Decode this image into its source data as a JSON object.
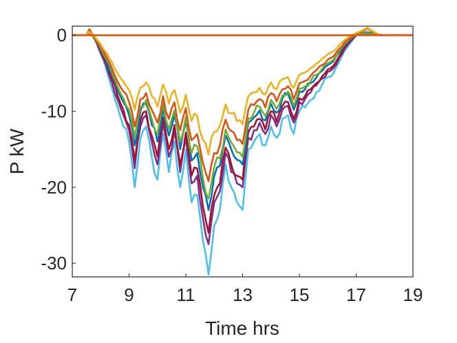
{
  "chart_data": {
    "type": "line",
    "title": "",
    "xlabel": "Time hrs",
    "ylabel": "P kW",
    "xlim": [
      7,
      19
    ],
    "ylim": [
      -31.8,
      1.2
    ],
    "xticks": [
      7,
      9,
      11,
      13,
      15,
      17,
      19
    ],
    "yticks": [
      0,
      -10,
      -20,
      -30
    ],
    "grid": false,
    "legend": "none",
    "x_sample_hours": [
      7.0,
      7.5,
      7.6,
      7.7,
      7.8,
      7.9,
      8.0,
      8.2,
      8.4,
      8.6,
      8.8,
      9.0,
      9.2,
      9.4,
      9.6,
      9.8,
      10.0,
      10.2,
      10.4,
      10.6,
      10.8,
      11.0,
      11.2,
      11.4,
      11.6,
      11.8,
      12.0,
      12.2,
      12.4,
      12.6,
      12.8,
      13.0,
      13.2,
      13.4,
      13.6,
      13.8,
      14.0,
      14.2,
      14.4,
      14.6,
      14.8,
      15.0,
      15.2,
      15.4,
      15.6,
      15.8,
      16.0,
      16.2,
      16.4,
      16.6,
      16.8,
      17.0,
      17.2,
      17.4,
      17.6,
      17.8,
      18.0,
      19.0
    ],
    "series": [
      {
        "color": "#4DBEEE",
        "values": [
          0,
          0,
          0.4,
          0,
          -0.6,
          -1.5,
          -2.5,
          -4.5,
          -7.0,
          -9.5,
          -12.0,
          -14.0,
          -20.0,
          -13.5,
          -12.0,
          -16.0,
          -19.0,
          -13.0,
          -18.0,
          -14.0,
          -20.0,
          -15.0,
          -22.0,
          -21.0,
          -27.0,
          -31.5,
          -25.0,
          -23.0,
          -17.0,
          -20.0,
          -22.0,
          -23.0,
          -15.0,
          -14.0,
          -13.0,
          -14.5,
          -12.0,
          -13.5,
          -11.0,
          -10.5,
          -13.0,
          -10.0,
          -9.5,
          -8.5,
          -7.5,
          -6.5,
          -5.5,
          -5.0,
          -3.5,
          -2.0,
          -1.0,
          0,
          0.1,
          0.2,
          0.1,
          0,
          0,
          0
        ]
      },
      {
        "color": "#7E2F8E",
        "values": [
          0,
          0,
          0.3,
          0,
          -0.5,
          -1.3,
          -2.2,
          -4.0,
          -6.2,
          -8.5,
          -10.5,
          -12.5,
          -17.5,
          -12.0,
          -10.5,
          -14.0,
          -17.0,
          -11.5,
          -16.0,
          -12.5,
          -18.0,
          -13.5,
          -19.5,
          -18.5,
          -24.0,
          -27.5,
          -22.0,
          -20.5,
          -15.5,
          -18.0,
          -19.5,
          -20.0,
          -13.5,
          -12.5,
          -11.5,
          -13.0,
          -10.5,
          -12.0,
          -9.8,
          -9.3,
          -11.5,
          -8.8,
          -8.4,
          -7.5,
          -6.6,
          -5.7,
          -4.8,
          -4.3,
          -3.0,
          -1.7,
          -0.8,
          0,
          0.1,
          0.2,
          0.1,
          0,
          0,
          0
        ]
      },
      {
        "color": "#A2142F",
        "values": [
          0,
          0,
          0.3,
          0,
          -0.5,
          -1.2,
          -2.0,
          -3.7,
          -5.8,
          -8.0,
          -9.8,
          -11.8,
          -16.5,
          -11.2,
          -10.0,
          -13.2,
          -16.0,
          -10.8,
          -15.0,
          -11.8,
          -17.0,
          -12.8,
          -18.5,
          -17.5,
          -22.5,
          -26.0,
          -21.0,
          -19.5,
          -14.8,
          -17.0,
          -18.5,
          -19.0,
          -12.8,
          -12.0,
          -11.0,
          -12.4,
          -10.0,
          -11.4,
          -9.3,
          -8.8,
          -11.0,
          -8.3,
          -8.0,
          -7.1,
          -6.3,
          -5.4,
          -4.5,
          -4.0,
          -2.8,
          -1.6,
          -0.7,
          0,
          0.1,
          0.2,
          0.1,
          0,
          0,
          0
        ]
      },
      {
        "color": "#0072BD",
        "values": [
          0,
          0,
          0.6,
          0,
          -0.4,
          -1.0,
          -1.8,
          -3.3,
          -5.2,
          -7.2,
          -8.8,
          -10.5,
          -14.5,
          -10.0,
          -9.0,
          -11.8,
          -14.0,
          -9.6,
          -13.2,
          -10.5,
          -15.0,
          -11.4,
          -16.5,
          -15.5,
          -20.0,
          -23.0,
          -18.5,
          -17.2,
          -13.2,
          -15.0,
          -16.4,
          -17.0,
          -11.5,
          -10.8,
          -9.9,
          -11.2,
          -9.0,
          -10.2,
          -8.3,
          -7.8,
          -9.8,
          -7.4,
          -7.1,
          -6.3,
          -5.5,
          -4.7,
          -3.9,
          -3.4,
          -2.3,
          -1.2,
          -0.5,
          0.1,
          0.3,
          0.4,
          0.3,
          0.1,
          0,
          0
        ]
      },
      {
        "color": "#77AC30",
        "values": [
          0,
          0,
          0.4,
          0,
          -0.4,
          -1.0,
          -1.7,
          -3.1,
          -4.9,
          -6.8,
          -8.3,
          -9.8,
          -13.5,
          -9.4,
          -8.5,
          -11.0,
          -13.0,
          -9.0,
          -12.4,
          -9.9,
          -14.0,
          -10.7,
          -15.5,
          -14.6,
          -18.8,
          -21.5,
          -17.3,
          -16.2,
          -12.4,
          -14.1,
          -15.4,
          -16.0,
          -10.9,
          -10.2,
          -9.4,
          -10.6,
          -8.5,
          -9.7,
          -7.9,
          -7.4,
          -9.3,
          -7.0,
          -6.7,
          -6.0,
          -5.2,
          -4.4,
          -3.7,
          -3.2,
          -2.1,
          -1.1,
          -0.4,
          0.1,
          0.2,
          0.3,
          0.2,
          0,
          0,
          0
        ]
      },
      {
        "color": "#D95319",
        "values": [
          0,
          0,
          0.8,
          0.2,
          -0.3,
          -0.9,
          -1.5,
          -2.8,
          -4.4,
          -6.1,
          -7.4,
          -8.8,
          -12.0,
          -8.4,
          -7.6,
          -9.8,
          -11.5,
          -8.0,
          -11.0,
          -8.8,
          -12.5,
          -9.6,
          -13.8,
          -13.0,
          -16.8,
          -19.2,
          -15.5,
          -14.5,
          -11.1,
          -12.6,
          -13.8,
          -14.3,
          -9.8,
          -9.2,
          -8.4,
          -9.5,
          -7.6,
          -8.7,
          -7.1,
          -6.7,
          -8.4,
          -6.3,
          -6.0,
          -5.3,
          -4.6,
          -3.9,
          -3.2,
          -2.8,
          -1.8,
          -0.9,
          -0.3,
          0.2,
          0.5,
          0.9,
          0.4,
          0.1,
          0,
          0
        ]
      },
      {
        "color": "#EDB120",
        "values": [
          0,
          0,
          0.5,
          0.1,
          -0.2,
          -0.7,
          -1.2,
          -2.3,
          -3.6,
          -5.0,
          -6.1,
          -7.2,
          -9.8,
          -6.9,
          -6.2,
          -8.0,
          -9.4,
          -6.5,
          -9.0,
          -7.2,
          -10.2,
          -7.8,
          -11.3,
          -10.6,
          -13.7,
          -15.7,
          -12.7,
          -11.9,
          -9.1,
          -10.3,
          -11.3,
          -11.7,
          -8.0,
          -7.5,
          -6.9,
          -7.8,
          -6.2,
          -7.1,
          -5.8,
          -5.5,
          -6.9,
          -5.2,
          -4.9,
          -4.3,
          -3.7,
          -3.1,
          -2.5,
          -2.1,
          -1.3,
          -0.6,
          -0.1,
          0.3,
          0.6,
          1.0,
          0.5,
          0.1,
          0,
          0
        ]
      },
      {
        "color": "#D95319",
        "values": [
          0,
          0,
          0,
          0,
          0,
          0,
          0,
          0,
          0,
          0,
          0,
          0,
          0,
          0,
          0,
          0,
          0,
          0,
          0,
          0,
          0,
          0,
          0,
          0,
          0,
          0,
          0,
          0,
          0,
          0,
          0,
          0,
          0,
          0,
          0,
          0,
          0,
          0,
          0,
          0,
          0,
          0,
          0,
          0,
          0,
          0,
          0,
          0,
          0,
          0,
          0,
          0,
          0,
          0,
          0,
          0,
          0,
          0
        ]
      }
    ]
  }
}
